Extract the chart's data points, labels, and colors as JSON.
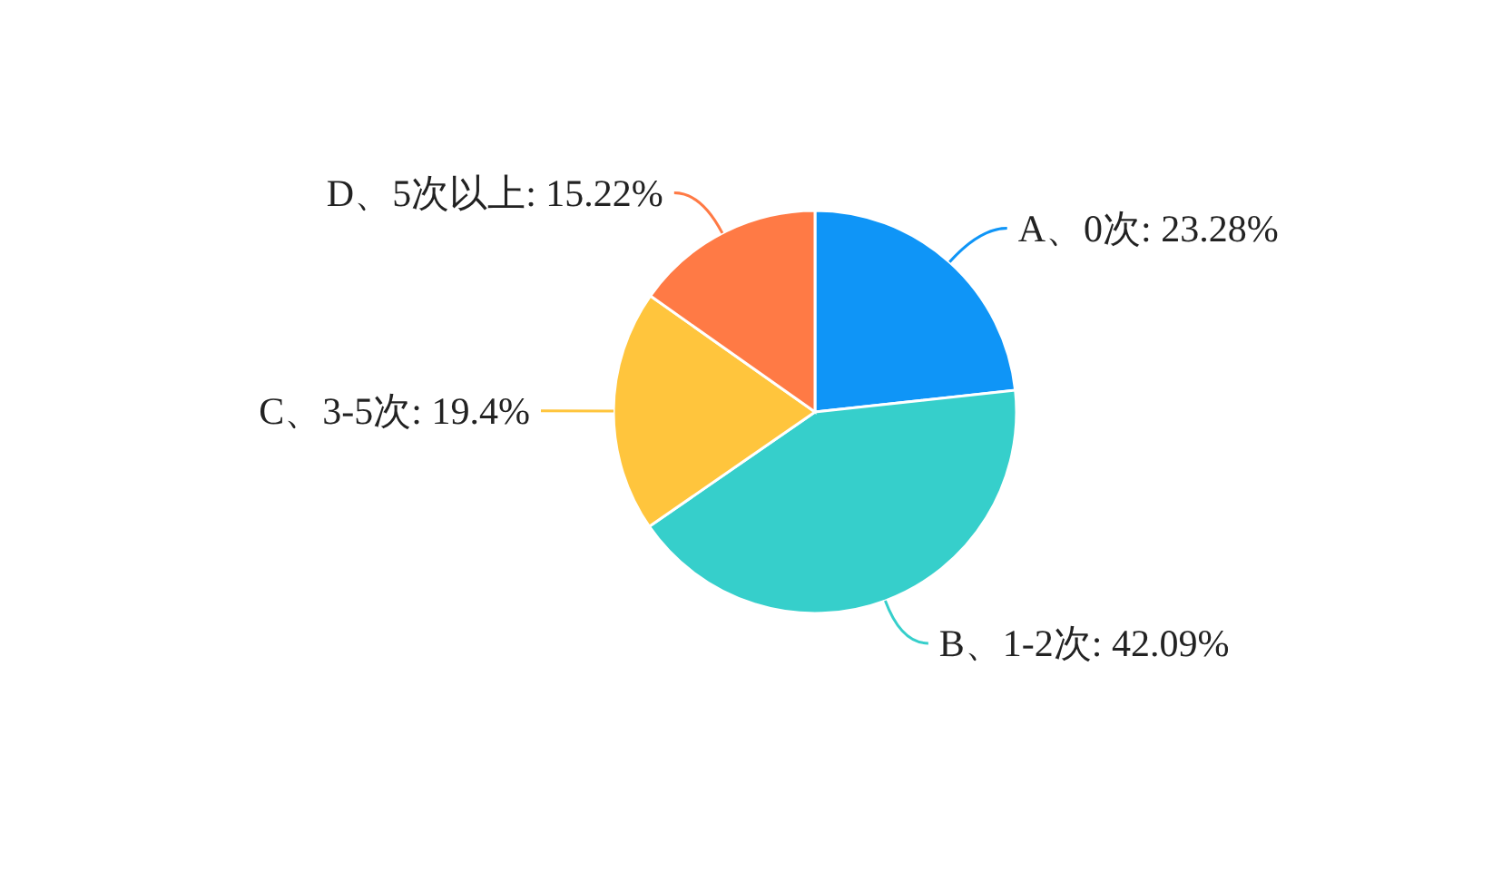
{
  "chart_data": {
    "type": "pie",
    "categories": [
      "A、0次",
      "B、1-2次",
      "C、3-5次",
      "D、5次以上"
    ],
    "values": [
      23.28,
      42.09,
      19.4,
      15.22
    ],
    "value_labels": [
      "23.28%",
      "42.09%",
      "19.4%",
      "15.22%"
    ],
    "colors": [
      "#0f95f7",
      "#36cfcb",
      "#ffc53d",
      "#ff7a45"
    ]
  }
}
